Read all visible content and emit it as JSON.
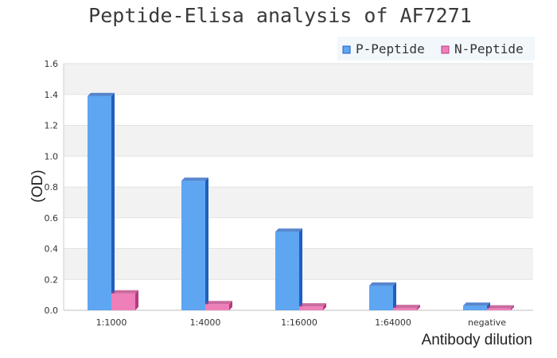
{
  "chart_data": {
    "type": "bar",
    "title": "Peptide-Elisa analysis of AF7271",
    "xlabel": "Antibody dilution",
    "ylabel": "(OD)",
    "categories": [
      "1:1000",
      "1:4000",
      "1:16000",
      "1:64000",
      "negative"
    ],
    "series": [
      {
        "name": "P-Peptide",
        "values": [
          1.39,
          0.84,
          0.51,
          0.16,
          0.03
        ]
      },
      {
        "name": "N-Peptide",
        "values": [
          0.11,
          0.04,
          0.025,
          0.015,
          0.012
        ]
      }
    ],
    "ylim": [
      0,
      1.6
    ],
    "yticks": [
      "0.0",
      "0.2",
      "0.4",
      "0.6",
      "0.8",
      "1.0",
      "1.2",
      "1.4",
      "1.6"
    ],
    "grid": "horizontal bands",
    "legend": "top-right",
    "colors": {
      "p_peptide": "#5ea5f2",
      "p_peptide_side": "#1f5fbf",
      "n_peptide": "#ef7fb9",
      "n_peptide_side": "#b83a7f",
      "band_light": "#f2f2f2",
      "legend_bg": "#f1f7fb"
    }
  }
}
